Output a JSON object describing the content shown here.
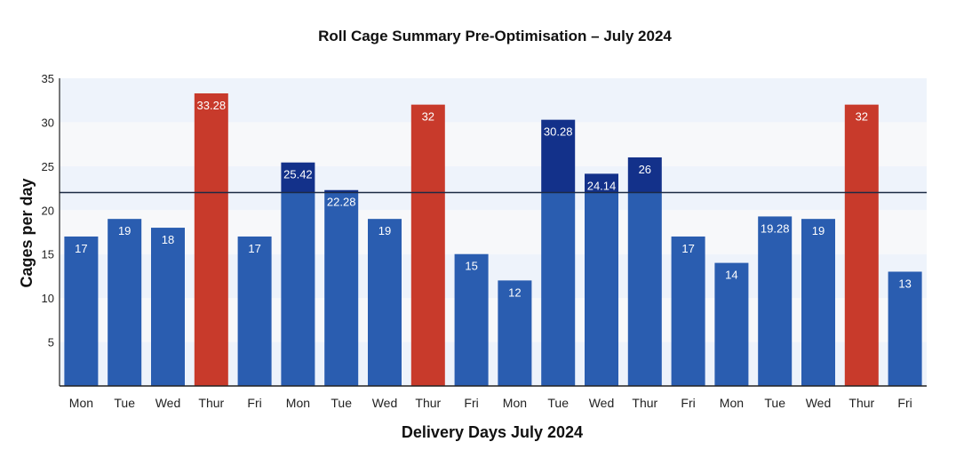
{
  "chart_data": {
    "type": "bar",
    "title": "Roll Cage Summary Pre-Optimisation – July 2024",
    "xlabel": "Delivery Days July 2024",
    "ylabel": "Cages per day",
    "ylim": [
      0,
      35
    ],
    "yticks": [
      5,
      10,
      15,
      20,
      25,
      30,
      35
    ],
    "reference_line": 22,
    "categories": [
      "Mon",
      "Tue",
      "Wed",
      "Thur",
      "Fri",
      "Mon",
      "Tue",
      "Wed",
      "Thur",
      "Fri",
      "Mon",
      "Tue",
      "Wed",
      "Thur",
      "Fri",
      "Mon",
      "Tue",
      "Wed",
      "Thur",
      "Fri"
    ],
    "values": [
      17,
      19,
      18,
      33.28,
      17,
      25.42,
      22.28,
      19,
      32,
      15,
      12,
      30.28,
      24.14,
      26,
      17,
      14,
      19.28,
      19,
      32,
      13
    ],
    "labels": [
      "17",
      "19",
      "18",
      "33.28",
      "17",
      "25.42",
      "22.28",
      "19",
      "32",
      "15",
      "12",
      "30.28",
      "24.14",
      "26",
      "17",
      "14",
      "19.28",
      "19",
      "32",
      "13"
    ],
    "bar_colors": [
      "#2a5db0",
      "#2a5db0",
      "#2a5db0",
      "#c83a2b",
      "#2a5db0",
      "#2a5db0",
      "#2a5db0",
      "#2a5db0",
      "#c83a2b",
      "#2a5db0",
      "#2a5db0",
      "#2a5db0",
      "#2a5db0",
      "#2a5db0",
      "#2a5db0",
      "#2a5db0",
      "#2a5db0",
      "#2a5db0",
      "#c83a2b",
      "#2a5db0"
    ],
    "above_line_color": "#13318a",
    "band_colors": [
      "#eef3fb",
      "#f7f8fa"
    ],
    "grid": false,
    "legend": "none"
  }
}
